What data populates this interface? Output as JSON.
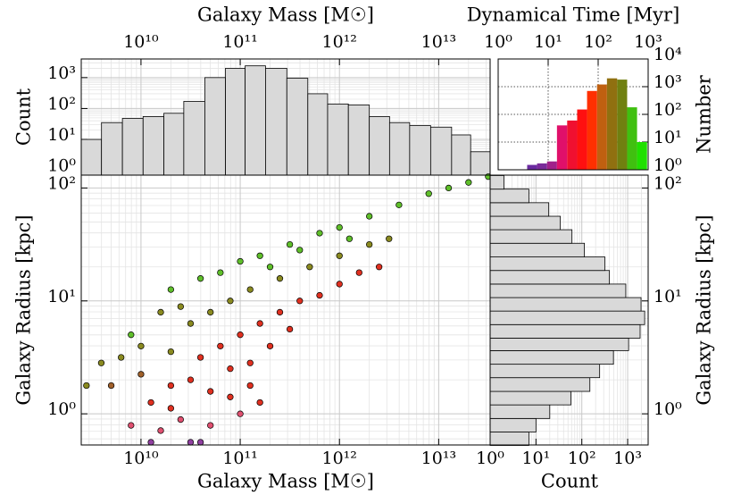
{
  "chart_data": [
    {
      "type": "histogram",
      "orientation": "vertical",
      "xlabel": "Galaxy Mass [M☉]",
      "ylabel": "Count",
      "log_x": true,
      "log_y": true,
      "grid": true,
      "color": "#d9d9d9",
      "bins": [
        2500000000.0,
        4000000000.0,
        6500000000.0,
        10500000000.0,
        17000000000.0,
        27000000000.0,
        44000000000.0,
        71000000000.0,
        112000000000.0,
        180000000000.0,
        295000000000.0,
        480000000000.0,
        760000000000.0,
        1230000000000.0,
        2000000000000.0,
        3200000000000.0,
        5100000000000.0,
        8300000000000.0,
        13500000000000.0,
        21000000000000.0,
        33000000000000.0
      ],
      "values": [
        10,
        35,
        48,
        55,
        70,
        170,
        1000,
        2000,
        2400,
        2000,
        950,
        300,
        140,
        130,
        55,
        35,
        28,
        25,
        14,
        4
      ],
      "xlim": [
        2500000000.0,
        33000000000000.0
      ],
      "ylim": [
        0.7,
        4000
      ],
      "xticks": [
        {
          "value": 10000000000.0,
          "label": "10¹⁰"
        },
        {
          "value": 100000000000.0,
          "label": "10¹¹"
        },
        {
          "value": 1000000000000.0,
          "label": "10¹²"
        },
        {
          "value": 10000000000000.0,
          "label": "10¹³"
        }
      ],
      "yticks": [
        {
          "value": 1,
          "label": "10⁰"
        },
        {
          "value": 10,
          "label": "10¹"
        },
        {
          "value": 100,
          "label": "10²"
        },
        {
          "value": 1000,
          "label": "10³"
        }
      ]
    },
    {
      "type": "histogram",
      "orientation": "vertical",
      "xlabel": "Dynamical Time [Myr]",
      "ylabel": "Number",
      "log_x": true,
      "log_y": true,
      "grid": true,
      "grid_style": "dotted",
      "bins": [
        3.8,
        6,
        9.5,
        15,
        24,
        38,
        60,
        95,
        150,
        240,
        380,
        600,
        950
      ],
      "values": [
        1.5,
        1.7,
        2,
        40,
        60,
        150,
        700,
        1200,
        2000,
        1800,
        180,
        10
      ],
      "colors": [
        "#6a2aa0",
        "#7a2a9a",
        "#a0208a",
        "#e0106a",
        "#f01030",
        "#ff1010",
        "#ff3000",
        "#c06010",
        "#907010",
        "#708010",
        "#40c010",
        "#20e000"
      ],
      "xlim": [
        1,
        1000
      ],
      "ylim": [
        1,
        10000
      ],
      "xticks": [
        {
          "value": 1,
          "label": "10⁰"
        },
        {
          "value": 10,
          "label": "10¹"
        },
        {
          "value": 100,
          "label": "10²"
        },
        {
          "value": 1000,
          "label": "10³"
        }
      ],
      "yticks": [
        {
          "value": 1,
          "label": "10⁰"
        },
        {
          "value": 10,
          "label": "10¹"
        },
        {
          "value": 100,
          "label": "10²"
        },
        {
          "value": 1000,
          "label": "10³"
        },
        {
          "value": 10000,
          "label": "10⁴"
        }
      ]
    },
    {
      "type": "scatter",
      "xlabel": "Galaxy Mass [M☉]",
      "ylabel": "Galaxy Radius [kpc]",
      "log_x": true,
      "log_y": true,
      "grid": true,
      "x": [
        100000000000.0,
        158000000000.0,
        316000000000.0,
        631000000000.0,
        1000000000000.0,
        2000000000000.0,
        3980000000000.0,
        7940000000000.0,
        12600000000000.0,
        20000000000000.0,
        31600000000000.0,
        63100000000.0,
        39800000000.0,
        200000000000.0,
        398000000000.0,
        1260000000000.0,
        25100000000.0,
        15800000000.0,
        10000000000.0,
        6310000000.0,
        3980000000.0,
        2820000000.0,
        5010000000.0,
        10000000000.0,
        20000000000.0,
        31600000000.0,
        50100000000.0,
        79400000000.0,
        126000000000.0,
        251000000000.0,
        501000000000.0,
        1000000000000.0,
        2000000000000.0,
        3160000000000.0,
        39800000000.0,
        63100000000.0,
        100000000000.0,
        158000000000.0,
        251000000000.0,
        398000000000.0,
        631000000000.0,
        1000000000000.0,
        1580000000000.0,
        2510000000000.0,
        79400000000.0,
        126000000000.0,
        200000000000.0,
        316000000000.0,
        31600000000.0,
        50100000000.0,
        79400000000.0,
        126000000000.0,
        20000000000.0,
        12600000000.0,
        25100000000.0,
        50100000000.0,
        15800000000.0,
        100000000000.0,
        31600000000.0,
        12600000000.0,
        39800000000.0,
        7940000000.0,
        20000000000.0,
        158000000000.0,
        20000000000.0,
        7940000000.0
      ],
      "y": [
        22.4,
        25.1,
        31.6,
        39.8,
        44.7,
        56.2,
        70.8,
        89.1,
        100,
        112,
        126,
        17.8,
        15.8,
        20,
        28.2,
        35.5,
        8.91,
        7.94,
        3.98,
        3.16,
        2.82,
        1.78,
        1.78,
        2.24,
        3.55,
        6.31,
        7.94,
        10,
        12.6,
        15.8,
        20,
        25.1,
        31.6,
        35.5,
        3.16,
        3.98,
        5.01,
        6.31,
        7.94,
        10,
        11.2,
        14.1,
        17.8,
        20,
        2.51,
        2.82,
        3.98,
        5.62,
        2,
        1.58,
        1.41,
        1.78,
        1.78,
        1.26,
        0.89,
        0.79,
        0.71,
        1,
        0.56,
        0.56,
        0.56,
        0.79,
        1.12,
        1.26,
        12.6,
        5.01
      ],
      "colors": [
        "#5fbf2a",
        "#5fbf2a",
        "#5fbf2a",
        "#5fbf2a",
        "#5fbf2a",
        "#5fbf2a",
        "#5fbf2a",
        "#5fbf2a",
        "#5fbf2a",
        "#5fbf2a",
        "#5fbf2a",
        "#5fbf2a",
        "#5fbf2a",
        "#5fbf2a",
        "#5fbf2a",
        "#5fbf2a",
        "#8a8a20",
        "#8a8a20",
        "#8a8a20",
        "#8a8a20",
        "#8a8a20",
        "#8a8a20",
        "#a0602a",
        "#a0602a",
        "#8a8a20",
        "#8a8a20",
        "#8a8a20",
        "#8a8a20",
        "#8a8a20",
        "#8a8a20",
        "#8a8a20",
        "#8a8a20",
        "#8a8a20",
        "#8a8a20",
        "#e03020",
        "#e03020",
        "#e03020",
        "#e03020",
        "#e03020",
        "#e03020",
        "#e03020",
        "#e03020",
        "#e03020",
        "#e03020",
        "#e03020",
        "#e03020",
        "#e03020",
        "#e03020",
        "#e03020",
        "#e03020",
        "#e03020",
        "#e03020",
        "#e03020",
        "#e03020",
        "#e05070",
        "#e05070",
        "#e05070",
        "#e05070",
        "#9040a0",
        "#9040a0",
        "#9040a0",
        "#e05070",
        "#e03020",
        "#e03020",
        "#5fbf2a",
        "#5fbf2a"
      ],
      "xlim": [
        2500000000.0,
        33000000000000.0
      ],
      "ylim": [
        0.53,
        130
      ],
      "xticks": [
        {
          "value": 10000000000.0,
          "label": "10¹⁰"
        },
        {
          "value": 100000000000.0,
          "label": "10¹¹"
        },
        {
          "value": 1000000000000.0,
          "label": "10¹²"
        },
        {
          "value": 10000000000000.0,
          "label": "10¹³"
        }
      ],
      "yticks": [
        {
          "value": 1,
          "label": "10⁰"
        },
        {
          "value": 10,
          "label": "10¹"
        },
        {
          "value": 100,
          "label": "10²"
        }
      ]
    },
    {
      "type": "histogram",
      "orientation": "horizontal",
      "xlabel": "Count",
      "ylabel": "Galaxy Radius [kpc]",
      "log_x": true,
      "log_y": true,
      "grid": true,
      "color": "#d9d9d9",
      "bins": [
        0.525,
        0.69,
        0.91,
        1.2,
        1.58,
        2.09,
        2.75,
        3.63,
        4.68,
        6.17,
        8.13,
        10.7,
        14.1,
        18.6,
        24.5,
        32.4,
        42.7,
        56.2,
        74.1,
        97.7,
        129
      ],
      "values": [
        7,
        10,
        20,
        58,
        150,
        245,
        490,
        1050,
        1870,
        2350,
        1960,
        910,
        400,
        320,
        114,
        61,
        34,
        19,
        7,
        2
      ],
      "xlim": [
        1,
        2800
      ],
      "ylim": [
        0.53,
        130
      ],
      "xticks": [
        {
          "value": 1,
          "label": "10⁰"
        },
        {
          "value": 10,
          "label": "10¹"
        },
        {
          "value": 100,
          "label": "10²"
        },
        {
          "value": 1000,
          "label": "10³"
        }
      ],
      "yticks": [
        {
          "value": 1,
          "label": "10⁰"
        },
        {
          "value": 10,
          "label": "10¹"
        },
        {
          "value": 100,
          "label": "10²"
        }
      ]
    }
  ]
}
